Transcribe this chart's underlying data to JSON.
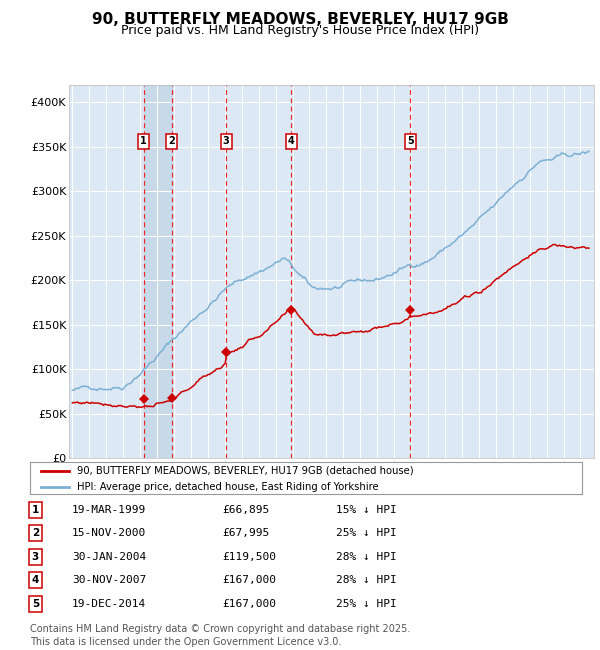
{
  "title": "90, BUTTERFLY MEADOWS, BEVERLEY, HU17 9GB",
  "subtitle": "Price paid vs. HM Land Registry's House Price Index (HPI)",
  "title_fontsize": 11,
  "subtitle_fontsize": 9,
  "background_color": "#ffffff",
  "plot_bg_color": "#dce9f5",
  "grid_color": "#ffffff",
  "ylabel_ticks": [
    "£0",
    "£50K",
    "£100K",
    "£150K",
    "£200K",
    "£250K",
    "£300K",
    "£350K",
    "£400K"
  ],
  "ylim": [
    0,
    420000
  ],
  "xlim_start": 1994.8,
  "xlim_end": 2025.8,
  "purchases": [
    {
      "num": 1,
      "date_x": 1999.21,
      "price": 66895,
      "label": "19-MAR-1999",
      "amount": "£66,895",
      "pct": "15% ↓ HPI"
    },
    {
      "num": 2,
      "date_x": 2000.87,
      "price": 67995,
      "label": "15-NOV-2000",
      "amount": "£67,995",
      "pct": "25% ↓ HPI"
    },
    {
      "num": 3,
      "date_x": 2004.08,
      "price": 119500,
      "label": "30-JAN-2004",
      "amount": "£119,500",
      "pct": "28% ↓ HPI"
    },
    {
      "num": 4,
      "date_x": 2007.91,
      "price": 167000,
      "label": "30-NOV-2007",
      "amount": "£167,000",
      "pct": "28% ↓ HPI"
    },
    {
      "num": 5,
      "date_x": 2014.96,
      "price": 167000,
      "label": "19-DEC-2014",
      "amount": "£167,000",
      "pct": "25% ↓ HPI"
    }
  ],
  "red_line_color": "#cc0000",
  "blue_line_color": "#7bafd4",
  "dashed_line_color": "#ee2222",
  "marker_color": "#cc0000",
  "legend_red_label": "90, BUTTERFLY MEADOWS, BEVERLEY, HU17 9GB (detached house)",
  "legend_blue_label": "HPI: Average price, detached house, East Riding of Yorkshire",
  "footer": "Contains HM Land Registry data © Crown copyright and database right 2025.\nThis data is licensed under the Open Government Licence v3.0.",
  "footer_fontsize": 7,
  "box_color": "#cc0000",
  "highlight_band_color": "#b8cfe0",
  "highlight_alpha": 0.55
}
